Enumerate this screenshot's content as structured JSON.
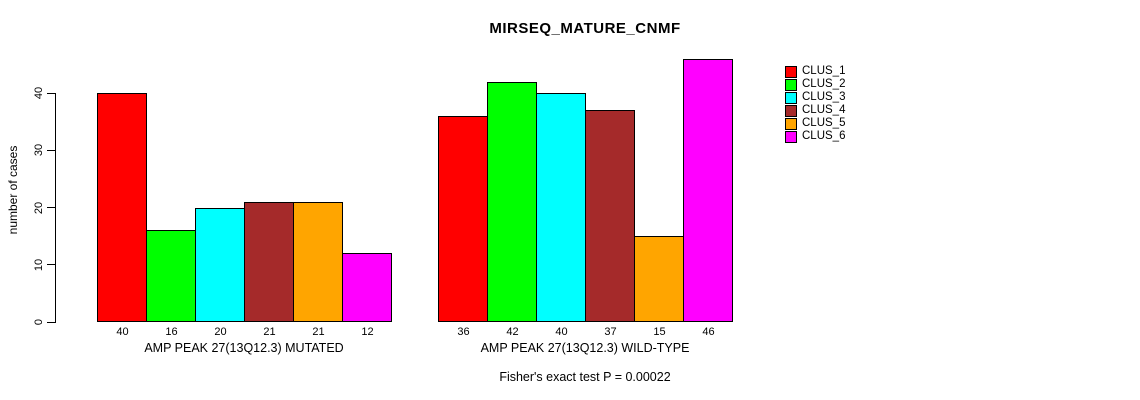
{
  "chart_data": {
    "type": "bar",
    "title": "MIRSEQ_MATURE_CNMF",
    "ylabel": "number of cases",
    "yticks": [
      0,
      10,
      20,
      30,
      40
    ],
    "ylim": [
      0,
      46
    ],
    "grid": false,
    "legend_position": "right",
    "series_names": [
      "CLUS_1",
      "CLUS_2",
      "CLUS_3",
      "CLUS_4",
      "CLUS_5",
      "CLUS_6"
    ],
    "series_colors": [
      "#FF0000",
      "#00FF00",
      "#00FFFF",
      "#A52A2A",
      "#FFA500",
      "#FF00FF"
    ],
    "groups": [
      {
        "label": "AMP PEAK 27(13Q12.3) MUTATED",
        "values": [
          40,
          16,
          20,
          21,
          21,
          12
        ]
      },
      {
        "label": "AMP PEAK 27(13Q12.3) WILD-TYPE",
        "values": [
          36,
          42,
          40,
          37,
          15,
          46
        ]
      }
    ],
    "annotation": "Fisher's exact test P = 0.00022"
  },
  "colors": {
    "background": "#FFFFFF",
    "axis": "#000000",
    "text": "#000000"
  }
}
